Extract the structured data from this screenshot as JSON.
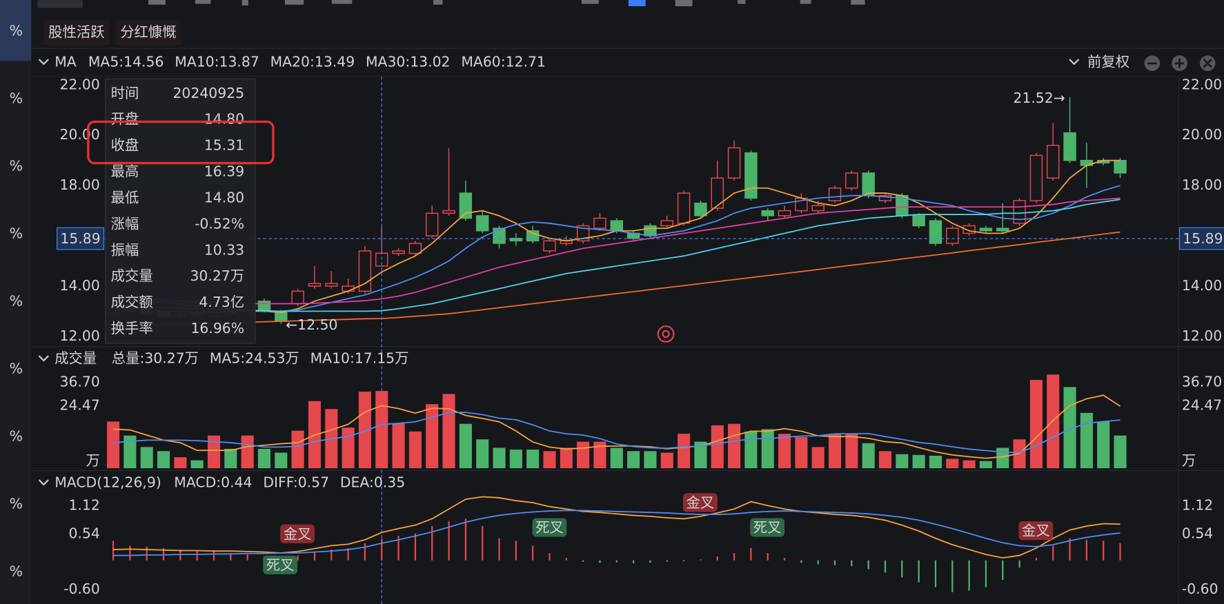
{
  "tags": [
    "股性活跃",
    "分红慷慨"
  ],
  "sidebar": [
    {
      "text": "%",
      "color": "#4cb36a"
    },
    {
      "text": "%",
      "color": "#4cb36a"
    },
    {
      "text": "%",
      "color": "#e5484d"
    },
    {
      "text": "%",
      "color": "#4cb36a"
    },
    {
      "text": "%",
      "color": "#e5484d"
    },
    {
      "text": "%",
      "color": "#e5484d"
    },
    {
      "text": "%",
      "color": "#e5484d"
    },
    {
      "text": "%",
      "color": "#e5484d"
    },
    {
      "text": "%",
      "color": "#4cb36a"
    }
  ],
  "tooltip": {
    "rows": [
      {
        "label": "时间",
        "value": "20240925",
        "color": "#e6e6e6"
      },
      {
        "label": "开盘",
        "value": "14.80",
        "color": "#4cb36a"
      },
      {
        "label": "收盘",
        "value": "15.31",
        "color": "#4cb36a"
      },
      {
        "label": "最高",
        "value": "16.39",
        "color": "#e5484d"
      },
      {
        "label": "最低",
        "value": "14.80",
        "color": "#4cb36a"
      },
      {
        "label": "涨幅",
        "value": "-0.52%",
        "color": "#4cb36a"
      },
      {
        "label": "振幅",
        "value": "10.33",
        "color": "#e6e6e6"
      },
      {
        "label": "成交量",
        "value": "30.27万",
        "color": "#e6e6e6"
      },
      {
        "label": "成交额",
        "value": "4.73亿",
        "color": "#e6e6e6"
      },
      {
        "label": "换手率",
        "value": "16.96%",
        "color": "#e6e6e6"
      }
    ]
  },
  "chart_data": [
    {
      "type": "candlestick",
      "title": "MA",
      "adjust": "前复权",
      "up_color": "#e5484d",
      "down_color": "#4cb36a",
      "open": [
        12.9,
        13.2,
        13.1,
        13.0,
        12.8,
        12.95,
        12.8,
        13.1,
        12.9,
        13.4,
        13.0,
        13.3,
        14.0,
        14.0,
        13.8,
        13.8,
        14.8,
        15.3,
        15.3,
        16.0,
        16.9,
        17.7,
        16.8,
        16.3,
        15.9,
        16.2,
        15.4,
        15.7,
        15.8,
        16.3,
        16.6,
        16.1,
        16.4,
        16.4,
        16.5,
        17.3,
        17.1,
        18.3,
        19.3,
        17.0,
        16.8,
        17.0,
        17.0,
        17.4,
        17.9,
        18.5,
        17.4,
        17.6,
        16.8,
        16.6,
        15.7,
        16.1,
        16.3,
        16.3,
        16.5,
        17.4,
        18.3,
        20.1,
        19.0,
        19.0,
        19.0
      ],
      "close": [
        13.1,
        13.0,
        12.9,
        12.8,
        12.9,
        12.85,
        13.1,
        12.9,
        13.2,
        13.0,
        12.6,
        13.8,
        14.1,
        14.1,
        14.0,
        15.4,
        15.31,
        15.4,
        15.7,
        16.9,
        17.0,
        16.7,
        16.2,
        15.7,
        15.8,
        15.8,
        15.8,
        15.8,
        16.4,
        16.7,
        16.2,
        15.9,
        16.0,
        16.6,
        17.7,
        16.8,
        18.3,
        19.5,
        17.5,
        16.8,
        17.0,
        17.5,
        17.2,
        17.9,
        18.5,
        17.6,
        17.6,
        16.8,
        16.4,
        15.7,
        16.3,
        16.4,
        16.2,
        16.2,
        17.4,
        19.2,
        19.6,
        19.0,
        18.8,
        18.9,
        18.5
      ],
      "high": [
        13.2,
        13.3,
        13.2,
        13.1,
        13.0,
        13.0,
        13.2,
        13.2,
        13.3,
        13.5,
        13.05,
        13.9,
        14.8,
        14.6,
        14.3,
        15.6,
        16.39,
        15.5,
        15.8,
        17.2,
        19.5,
        18.2,
        17.0,
        16.4,
        16.1,
        16.4,
        15.9,
        16.0,
        16.5,
        16.9,
        16.7,
        16.2,
        16.5,
        16.8,
        17.8,
        17.4,
        19.0,
        19.8,
        19.4,
        17.1,
        17.2,
        17.7,
        17.4,
        18.0,
        18.6,
        18.6,
        17.7,
        17.7,
        16.9,
        16.7,
        16.4,
        16.5,
        16.4,
        17.3,
        17.5,
        19.3,
        20.5,
        21.52,
        19.7,
        19.1,
        19.1
      ],
      "low": [
        12.8,
        12.9,
        12.8,
        12.7,
        12.7,
        12.75,
        12.75,
        12.85,
        12.85,
        12.95,
        12.5,
        13.2,
        13.9,
        13.9,
        13.7,
        13.7,
        14.8,
        15.2,
        15.2,
        15.9,
        16.8,
        16.6,
        16.1,
        15.5,
        15.6,
        15.7,
        15.3,
        15.6,
        15.7,
        16.2,
        16.1,
        15.8,
        15.9,
        16.3,
        16.4,
        16.7,
        17.0,
        18.2,
        17.4,
        16.6,
        16.7,
        16.9,
        16.9,
        17.3,
        17.8,
        17.5,
        17.3,
        16.7,
        16.3,
        15.6,
        15.6,
        16.0,
        16.1,
        16.1,
        16.4,
        17.3,
        18.2,
        18.9,
        17.9,
        18.8,
        18.3
      ],
      "series": [
        {
          "name": "MA5:14.56",
          "color": "#f5a13b",
          "values": [
            13.3,
            13.2,
            13.1,
            13.0,
            13.0,
            12.95,
            12.95,
            13.0,
            13.0,
            13.0,
            12.95,
            13.1,
            13.4,
            13.6,
            13.8,
            14.1,
            14.56,
            14.9,
            15.2,
            15.7,
            16.3,
            16.9,
            17.0,
            16.8,
            16.5,
            16.1,
            15.9,
            15.8,
            15.9,
            16.0,
            16.2,
            16.2,
            16.3,
            16.3,
            16.5,
            16.7,
            17.2,
            17.7,
            17.9,
            17.9,
            17.7,
            17.5,
            17.3,
            17.2,
            17.4,
            17.7,
            17.7,
            17.6,
            17.3,
            16.9,
            16.5,
            16.2,
            16.1,
            16.1,
            16.3,
            16.8,
            17.5,
            18.3,
            18.8,
            19.0,
            19.0
          ]
        },
        {
          "name": "MA10:13.87",
          "color": "#4c8cf5",
          "values": [
            13.5,
            13.45,
            13.4,
            13.35,
            13.3,
            13.2,
            13.15,
            13.1,
            13.05,
            13.0,
            13.0,
            13.05,
            13.2,
            13.35,
            13.5,
            13.65,
            13.87,
            14.1,
            14.35,
            14.65,
            15.0,
            15.5,
            15.95,
            16.25,
            16.45,
            16.55,
            16.5,
            16.4,
            16.3,
            16.25,
            16.2,
            16.1,
            16.0,
            16.1,
            16.2,
            16.4,
            16.6,
            16.9,
            17.1,
            17.2,
            17.3,
            17.4,
            17.5,
            17.55,
            17.6,
            17.6,
            17.55,
            17.5,
            17.4,
            17.3,
            17.2,
            17.0,
            16.85,
            16.7,
            16.65,
            16.7,
            16.9,
            17.2,
            17.55,
            17.8,
            18.0
          ]
        },
        {
          "name": "MA20:13.49",
          "color": "#e040a0",
          "values": [
            13.6,
            13.55,
            13.5,
            13.45,
            13.4,
            13.38,
            13.35,
            13.33,
            13.3,
            13.3,
            13.3,
            13.3,
            13.32,
            13.35,
            13.38,
            13.42,
            13.49,
            13.6,
            13.75,
            13.95,
            14.15,
            14.35,
            14.55,
            14.75,
            14.9,
            15.05,
            15.2,
            15.35,
            15.5,
            15.6,
            15.7,
            15.8,
            15.9,
            16.0,
            16.1,
            16.2,
            16.3,
            16.4,
            16.5,
            16.6,
            16.7,
            16.8,
            16.9,
            16.95,
            17.0,
            17.05,
            17.1,
            17.15,
            17.15,
            17.15,
            17.15,
            17.15,
            17.15,
            17.15,
            17.15,
            17.2,
            17.25,
            17.35,
            17.4,
            17.45,
            17.5
          ]
        },
        {
          "name": "MA30:13.02",
          "color": "#4fd0e8",
          "values": [
            13.2,
            13.18,
            13.16,
            13.14,
            13.12,
            13.1,
            13.08,
            13.06,
            13.04,
            13.02,
            13.0,
            13.0,
            13.0,
            13.0,
            13.0,
            13.0,
            13.02,
            13.1,
            13.2,
            13.3,
            13.45,
            13.6,
            13.75,
            13.9,
            14.05,
            14.2,
            14.35,
            14.5,
            14.6,
            14.7,
            14.8,
            14.9,
            15.0,
            15.1,
            15.2,
            15.35,
            15.5,
            15.65,
            15.8,
            15.95,
            16.1,
            16.25,
            16.4,
            16.5,
            16.6,
            16.7,
            16.75,
            16.8,
            16.85,
            16.85,
            16.85,
            16.85,
            16.85,
            16.9,
            16.9,
            16.95,
            17.0,
            17.1,
            17.25,
            17.35,
            17.45
          ]
        },
        {
          "name": "MA60:12.71",
          "color": "#f06a2a",
          "values": [
            12.45,
            12.46,
            12.47,
            12.48,
            12.5,
            12.51,
            12.52,
            12.54,
            12.56,
            12.58,
            12.6,
            12.62,
            12.64,
            12.66,
            12.68,
            12.7,
            12.71,
            12.75,
            12.8,
            12.85,
            12.9,
            12.98,
            13.06,
            13.14,
            13.22,
            13.3,
            13.38,
            13.46,
            13.54,
            13.62,
            13.7,
            13.78,
            13.86,
            13.94,
            14.02,
            14.1,
            14.18,
            14.26,
            14.34,
            14.42,
            14.5,
            14.58,
            14.66,
            14.75,
            14.83,
            14.91,
            14.99,
            15.08,
            15.16,
            15.24,
            15.32,
            15.41,
            15.49,
            15.57,
            15.65,
            15.74,
            15.82,
            15.9,
            15.98,
            16.07,
            16.15
          ]
        }
      ],
      "ylim": [
        11.66,
        22.34
      ],
      "yticks": [
        {
          "value": 12,
          "label": "12.00"
        },
        {
          "value": 14,
          "label": "14.00"
        },
        {
          "value": 18,
          "label": "18.00"
        },
        {
          "value": 20,
          "label": "20.00"
        },
        {
          "value": 22,
          "label": "22.00"
        }
      ],
      "crosshair": {
        "value": 15.89,
        "label": "15.89"
      },
      "annotations": [
        {
          "value": 21.52,
          "label": "21.52→"
        },
        {
          "value": 12.5,
          "label": "←12.50"
        }
      ]
    },
    {
      "type": "bar",
      "title": "成交量",
      "total_label": "总量:30.27万",
      "total_color": "#e5484d",
      "unit": "万",
      "values": [
        18.3,
        12.8,
        8.3,
        6.7,
        4.3,
        3.1,
        12.8,
        7.6,
        12.8,
        7.6,
        6.1,
        14.7,
        26.3,
        23.2,
        15.9,
        30.0,
        30.27,
        17.7,
        14.4,
        25.1,
        29.1,
        17.4,
        11.3,
        8.0,
        7.3,
        7.3,
        6.7,
        8.0,
        10.4,
        10.4,
        8.0,
        6.7,
        6.7,
        6.1,
        13.5,
        10.4,
        16.8,
        17.4,
        14.4,
        15.3,
        13.5,
        12.2,
        8.3,
        13.5,
        13.5,
        9.8,
        6.7,
        5.5,
        5.2,
        4.9,
        3.7,
        3.1,
        2.8,
        8.0,
        11.3,
        34.6,
        36.7,
        31.8,
        21.7,
        18.3,
        12.8
      ],
      "series": [
        {
          "name": "MA5:24.53万",
          "color": "#f5a13b",
          "values": [
            15.3,
            15,
            13,
            11,
            10,
            7,
            7,
            7,
            8.5,
            9,
            9.6,
            10,
            13,
            15,
            17.2,
            22,
            24.53,
            23.4,
            21.6,
            23.5,
            23.3,
            20.7,
            19.5,
            18.2,
            14.6,
            10.3,
            8.3,
            7.5,
            7.9,
            8.6,
            8.7,
            8.7,
            8.4,
            7.6,
            8.2,
            8.7,
            10.7,
            12.8,
            14.5,
            14.5,
            15.5,
            14.5,
            12.7,
            12.4,
            12.4,
            11.7,
            10.4,
            9.9,
            8.1,
            6.4,
            5.2,
            4.5,
            3.9,
            4.5,
            5.8,
            12,
            18.7,
            24.6,
            27.2,
            28.6,
            24.3
          ]
        },
        {
          "name": "MA10:17.15万",
          "color": "#4c8cf5",
          "values": [
            10,
            10.5,
            11,
            11,
            11,
            10.8,
            10.4,
            10,
            9.3,
            8.3,
            8.3,
            8.6,
            10.5,
            11.5,
            12.5,
            14.5,
            17.15,
            17.6,
            18.2,
            20,
            21.8,
            21.9,
            21,
            19.6,
            19,
            17,
            14.6,
            13.5,
            13,
            11.6,
            9.5,
            8.5,
            8,
            7.8,
            8.4,
            8.7,
            9.7,
            10.6,
            11.5,
            11.6,
            12.1,
            12.6,
            12.7,
            13.5,
            13.5,
            13.6,
            12.4,
            11.3,
            10.1,
            9.4,
            8.4,
            7.5,
            6.9,
            6.3,
            6.1,
            8.8,
            12.2,
            15.3,
            17.6,
            18.3,
            18.9
          ]
        }
      ],
      "ylim": [
        0,
        36.7
      ],
      "yticks": [
        {
          "value": 36.7,
          "label": "36.70"
        },
        24.47
      ]
    },
    {
      "type": "macd",
      "title": "MACD(12,26,9)",
      "value_name": "MACD:0.44",
      "up_color": "#e5484d",
      "down_color": "#4cb36a",
      "values": [
        0.4,
        0.3,
        0.28,
        0.25,
        0.22,
        0.2,
        0.18,
        0.15,
        0.12,
        0.08,
        0.05,
        0.1,
        0.18,
        0.22,
        0.25,
        0.35,
        0.44,
        0.5,
        0.55,
        0.7,
        0.8,
        0.85,
        0.7,
        0.45,
        0.4,
        0.3,
        0.15,
        0.05,
        -0.03,
        -0.05,
        -0.04,
        -0.06,
        -0.05,
        -0.03,
        -0.02,
        0.02,
        0.08,
        0.15,
        0.25,
        0.15,
        0.05,
        -0.05,
        -0.08,
        -0.1,
        -0.12,
        -0.18,
        -0.25,
        -0.35,
        -0.45,
        -0.55,
        -0.65,
        -0.62,
        -0.55,
        -0.4,
        -0.15,
        0.05,
        0.3,
        0.45,
        0.42,
        0.4,
        0.35
      ],
      "series": [
        {
          "name": "DIFF:0.57",
          "color": "#f5a13b",
          "values": [
            0.22,
            0.23,
            0.22,
            0.21,
            0.2,
            0.2,
            0.19,
            0.19,
            0.18,
            0.17,
            0.15,
            0.18,
            0.24,
            0.3,
            0.33,
            0.42,
            0.57,
            0.65,
            0.72,
            0.85,
            1.05,
            1.25,
            1.3,
            1.28,
            1.22,
            1.18,
            1.1,
            1.05,
            1.0,
            0.98,
            0.95,
            0.92,
            0.9,
            0.87,
            0.85,
            0.9,
            0.97,
            1.05,
            1.2,
            1.12,
            1.05,
            1.0,
            0.97,
            0.94,
            0.92,
            0.88,
            0.82,
            0.72,
            0.6,
            0.45,
            0.32,
            0.22,
            0.12,
            0.05,
            0.1,
            0.25,
            0.45,
            0.62,
            0.7,
            0.75,
            0.74
          ]
        },
        {
          "name": "DEA:0.35",
          "color": "#4c8cf5",
          "values": [
            0.1,
            0.1,
            0.11,
            0.11,
            0.12,
            0.12,
            0.13,
            0.13,
            0.14,
            0.14,
            0.15,
            0.15,
            0.17,
            0.19,
            0.22,
            0.27,
            0.35,
            0.42,
            0.5,
            0.58,
            0.68,
            0.78,
            0.86,
            0.92,
            0.96,
            0.99,
            1.01,
            1.02,
            1.02,
            1.01,
            1.0,
            0.99,
            0.98,
            0.97,
            0.95,
            0.94,
            0.94,
            0.95,
            0.98,
            1.0,
            1.01,
            1.0,
            0.99,
            0.98,
            0.97,
            0.95,
            0.92,
            0.88,
            0.82,
            0.74,
            0.65,
            0.55,
            0.45,
            0.36,
            0.3,
            0.28,
            0.32,
            0.4,
            0.47,
            0.52,
            0.56
          ]
        }
      ],
      "ylim": [
        -0.83,
        1.31
      ],
      "yticks": [
        1.12,
        0.54,
        {
          "value": -0.6,
          "label": "-0.60"
        }
      ],
      "crosses": [
        "死叉",
        "金叉",
        "死叉",
        "金叉",
        "死叉",
        "金叉"
      ]
    }
  ]
}
